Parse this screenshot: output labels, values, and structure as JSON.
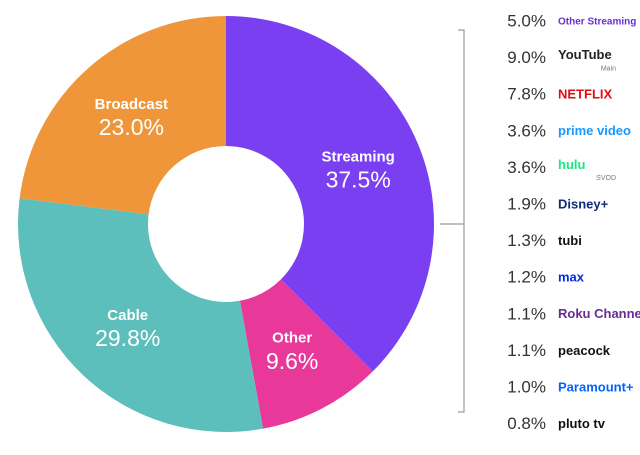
{
  "chart_data": {
    "type": "pie",
    "categories": [
      "Streaming",
      "Other",
      "Cable",
      "Broadcast"
    ],
    "values": [
      37.5,
      9.6,
      29.8,
      23.0
    ],
    "value_labels": [
      "37.5%",
      "9.6%",
      "29.8%",
      "23.0%"
    ],
    "colors": [
      "#7b3ff2",
      "#e8399a",
      "#5cbfbb",
      "#f0963a"
    ],
    "donut": true,
    "breakdown": [
      {
        "name": "Other Streaming",
        "value": 5.0,
        "label": "5.0%",
        "color": "#6a2fd6"
      },
      {
        "name": "YouTube",
        "sub": "Main",
        "value": 9.0,
        "label": "9.0%",
        "color": "#222222"
      },
      {
        "name": "NETFLIX",
        "value": 7.8,
        "label": "7.8%",
        "color": "#e50914"
      },
      {
        "name": "prime video",
        "value": 3.6,
        "label": "3.6%",
        "color": "#1a98ff"
      },
      {
        "name": "hulu",
        "sub": "SVOD",
        "value": 3.6,
        "label": "3.6%",
        "color": "#1ce783"
      },
      {
        "name": "Disney+",
        "value": 1.9,
        "label": "1.9%",
        "color": "#0e2a7a"
      },
      {
        "name": "tubi",
        "value": 1.3,
        "label": "1.3%",
        "color": "#111111"
      },
      {
        "name": "max",
        "value": 1.2,
        "label": "1.2%",
        "color": "#002be7"
      },
      {
        "name": "Roku Channel",
        "value": 1.1,
        "label": "1.1%",
        "color": "#662d91"
      },
      {
        "name": "peacock",
        "value": 1.1,
        "label": "1.1%",
        "color": "#111111"
      },
      {
        "name": "Paramount+",
        "value": 1.0,
        "label": "1.0%",
        "color": "#0064ff"
      },
      {
        "name": "pluto tv",
        "value": 0.8,
        "label": "0.8%",
        "color": "#111111"
      }
    ]
  }
}
